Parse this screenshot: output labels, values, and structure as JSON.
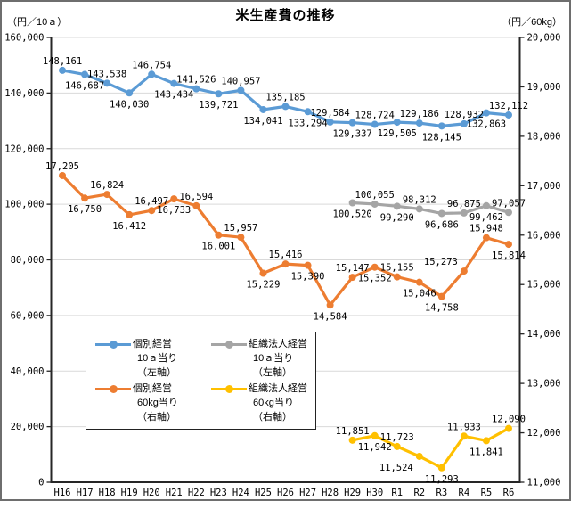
{
  "chart_data": {
    "type": "line",
    "title": "米生産費の推移",
    "left_axis": {
      "unit": "（円／10ａ）",
      "min": 0,
      "max": 160000,
      "step": 20000
    },
    "right_axis": {
      "unit": "（円／60kg）",
      "min": 11000,
      "max": 20000,
      "step": 1000
    },
    "categories": [
      "H16",
      "H17",
      "H18",
      "H19",
      "H20",
      "H21",
      "H22",
      "H23",
      "H24",
      "H25",
      "H26",
      "H27",
      "H28",
      "H29",
      "H30",
      "R1",
      "R2",
      "R3",
      "R4",
      "R5",
      "R6"
    ],
    "grid": "horizontal-major-left-axis",
    "legend_position": "inside-lower-left",
    "colors": {
      "gridline": "#d9d9d9",
      "axis": "#262626",
      "label_text": "#000000"
    },
    "series": [
      {
        "name": "個別経営 10ａ当り（左軸）",
        "legend_lines": [
          "個別経営",
          "10ａ当り",
          "（左軸）"
        ],
        "axis": "left",
        "color": "#5B9BD5",
        "start": 0,
        "values": [
          148161,
          146687,
          143538,
          140030,
          146754,
          143434,
          141526,
          139721,
          140957,
          134041,
          135185,
          133294,
          129584,
          129337,
          128724,
          129505,
          129186,
          128145,
          128932,
          132863,
          132112
        ],
        "label_pos": [
          "above",
          "below",
          "above",
          "below",
          "above",
          "below",
          "above",
          "below",
          "above",
          "below",
          "above",
          "below",
          "above",
          "below",
          "above",
          "below",
          "above",
          "below",
          "above",
          "below",
          "above"
        ]
      },
      {
        "name": "組織法人経営 10ａ当り（左軸）",
        "legend_lines": [
          "組織法人経営",
          "10ａ当り",
          "（左軸）"
        ],
        "axis": "left",
        "color": "#A5A5A5",
        "start": 13,
        "values": [
          100520,
          100055,
          99290,
          98312,
          96686,
          96875,
          99462,
          97057
        ],
        "label_pos": [
          "below",
          "above",
          "below",
          "above",
          "below",
          "above",
          "below",
          "above"
        ]
      },
      {
        "name": "個別経営 60kg当り（右軸）",
        "legend_lines": [
          "個別経営",
          "60kg当り",
          "（右軸）"
        ],
        "axis": "right",
        "color": "#ED7D31",
        "start": 0,
        "values": [
          17205,
          16750,
          16824,
          16412,
          16497,
          16733,
          16594,
          16001,
          15957,
          15229,
          15416,
          15390,
          14584,
          15147,
          15352,
          15155,
          15046,
          14758,
          15273,
          15948,
          15814
        ],
        "label_pos": [
          "above",
          "below",
          "above",
          "below",
          "above",
          "below",
          "above",
          "below",
          "above",
          "below",
          "above",
          "below",
          "below",
          "above",
          "below",
          "above",
          "below",
          "below",
          "above-left",
          "above",
          "below"
        ]
      },
      {
        "name": "組織法人経営 60kg当り（右軸）",
        "legend_lines": [
          "組織法人経営",
          "60kg当り",
          "（右軸）"
        ],
        "axis": "right",
        "color": "#FFC000",
        "start": 13,
        "values": [
          11851,
          11942,
          11723,
          11524,
          11293,
          11933,
          11841,
          12090
        ],
        "label_pos": [
          "above",
          "below",
          "above",
          "below-left",
          "below",
          "above",
          "below",
          "above"
        ]
      }
    ]
  }
}
